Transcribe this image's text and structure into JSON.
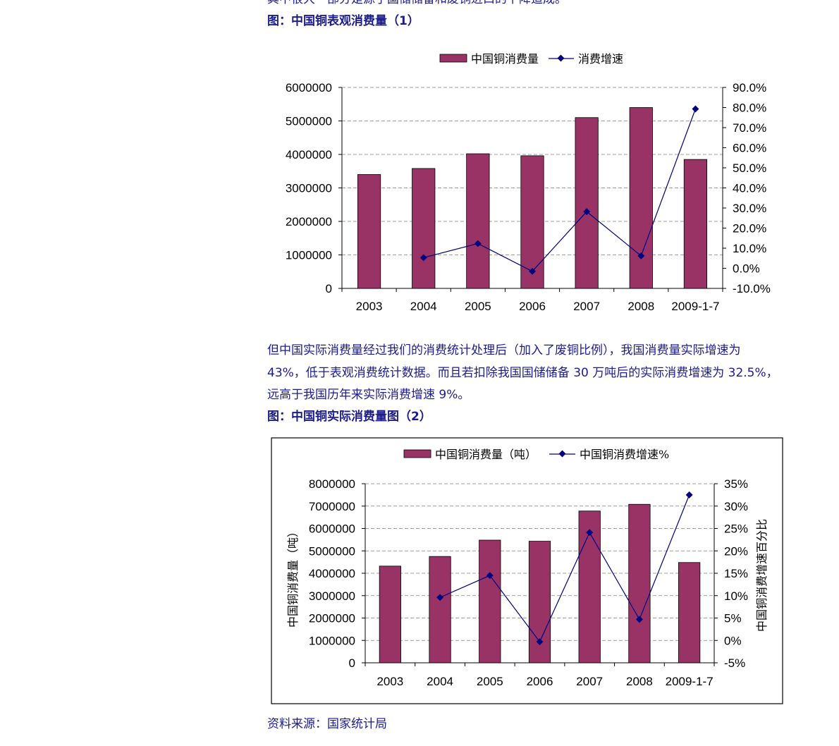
{
  "page": {
    "top_fragment": "其中很大一部分是源于国储储备和废铜进口的下降造成。",
    "heading1": "图：中国铜表观消费量（1）",
    "paragraph_lines": [
      "但中国实际消费量经过我们的消费统计处理后（加入了废铜比例），我国消费量实际增速为",
      "43%，低于表观消费统计数据。而且若扣除我国国储储备 30 万吨后的实际消费增速为 32.5%，",
      "远高于我国历年来实际消费增速 9%。"
    ],
    "heading2": "图：中国铜实际消费量图（2）",
    "source": "资料来源：国家统计局"
  },
  "colors": {
    "bar": "#993366",
    "line": "#000080",
    "text_blue": "#1c1c8c",
    "grid": "#808080"
  },
  "chart_data": [
    {
      "type": "bar",
      "categories": [
        "2003",
        "2004",
        "2005",
        "2006",
        "2007",
        "2008",
        "2009-1-7"
      ],
      "series": [
        {
          "name": "中国铜消费量",
          "type": "bar",
          "axis": "left",
          "values": [
            3400000,
            3580000,
            4020000,
            3960000,
            5100000,
            5400000,
            3850000
          ]
        },
        {
          "name": "消费增速",
          "type": "line",
          "axis": "right",
          "values": [
            null,
            5.3,
            12.3,
            -1.5,
            28.2,
            6.2,
            79.3
          ]
        }
      ],
      "left_axis": {
        "ylim": [
          0,
          6000000
        ],
        "ticks": [
          "6000000",
          "5000000",
          "4000000",
          "3000000",
          "2000000",
          "1000000",
          "0"
        ]
      },
      "right_axis": {
        "ylim": [
          -10,
          90
        ],
        "ticks": [
          "90.0%",
          "80.0%",
          "70.0%",
          "60.0%",
          "50.0%",
          "40.0%",
          "30.0%",
          "20.0%",
          "10.0%",
          "0.0%",
          "-10.0%"
        ]
      },
      "grid": true,
      "legend_position": "top"
    },
    {
      "type": "bar",
      "categories": [
        "2003",
        "2004",
        "2005",
        "2006",
        "2007",
        "2008",
        "2009-1-7"
      ],
      "series": [
        {
          "name": "中国铜消费量（吨）",
          "type": "bar",
          "axis": "left",
          "values": [
            4320000,
            4750000,
            5480000,
            5430000,
            6780000,
            7080000,
            4480000
          ]
        },
        {
          "name": "中国铜消费增速%",
          "type": "line",
          "axis": "right",
          "values": [
            null,
            9.6,
            14.5,
            -0.3,
            24.1,
            4.7,
            32.5
          ]
        }
      ],
      "left_axis": {
        "label": "中国铜消费量（吨）",
        "ylim": [
          0,
          8000000
        ],
        "ticks": [
          "8000000",
          "7000000",
          "6000000",
          "5000000",
          "4000000",
          "3000000",
          "2000000",
          "1000000",
          "0"
        ]
      },
      "right_axis": {
        "label": "中国铜消费增速百分比",
        "ylim": [
          -5,
          35
        ],
        "ticks": [
          "35%",
          "30%",
          "25%",
          "20%",
          "15%",
          "10%",
          "5%",
          "0%",
          "-5%"
        ]
      },
      "grid": true,
      "legend_position": "top"
    }
  ]
}
